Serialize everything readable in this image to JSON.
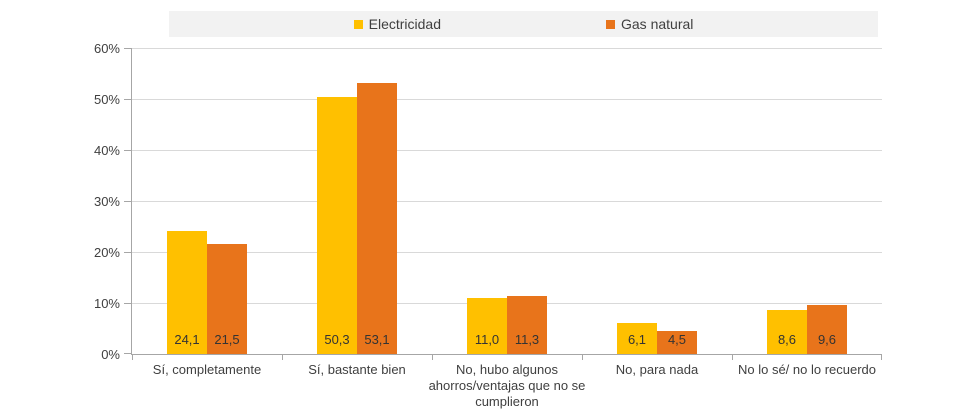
{
  "page": {
    "background": "#FFFFFF"
  },
  "legend": {
    "position": "top",
    "background": "#F2F2F2",
    "text_color": "#3F3F3F"
  },
  "chart_data": {
    "type": "bar",
    "title": "",
    "xlabel": "",
    "ylabel": "",
    "categories": [
      "Sí, completamente",
      "Sí, bastante bien",
      "No, hubo algunos ahorros/ventajas que no se cumplieron",
      "No, para nada",
      "No lo sé/ no lo recuerdo"
    ],
    "series": [
      {
        "name": "Electricidad",
        "color": "#FFC000",
        "values": [
          24.1,
          50.3,
          11.0,
          6.1,
          8.6
        ],
        "value_labels": [
          "24,1",
          "50,3",
          "11,0",
          "6,1",
          "8,6"
        ]
      },
      {
        "name": "Gas natural",
        "color": "#E8741B",
        "values": [
          21.5,
          53.1,
          11.3,
          4.5,
          9.6
        ],
        "value_labels": [
          "21,5",
          "53,1",
          "11,3",
          "4,5",
          "9,6"
        ]
      }
    ],
    "yaxis": {
      "min": 0,
      "max": 60,
      "step": 10,
      "tick_labels": [
        "0%",
        "10%",
        "20%",
        "30%",
        "40%",
        "50%",
        "60%"
      ]
    },
    "grid": true,
    "legend_position": "top",
    "value_labels_position": "inside-base",
    "colors": {
      "grid": "#D9D9D9",
      "axis": "#A6A6A6",
      "tick_text": "#404040",
      "category_text": "#404040",
      "value_text": "#333333"
    }
  }
}
